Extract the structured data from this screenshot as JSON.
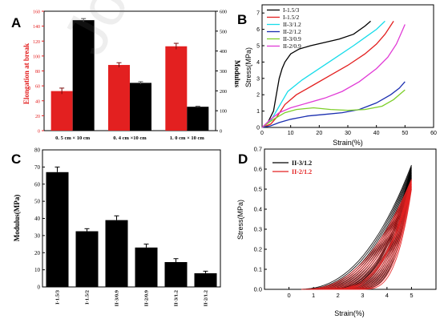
{
  "panels": {
    "A": "A",
    "B": "B",
    "C": "C",
    "D": "D"
  },
  "colors": {
    "red": "#e32020",
    "black": "#000000",
    "cyan": "#18dcea",
    "blue": "#1b2fb0",
    "green": "#7dcf2a",
    "magenta": "#e13bd6"
  },
  "watermark": "Journal Pre-proof",
  "stamp": "",
  "chart_data": [
    {
      "panel": "A",
      "type": "bar",
      "ylabel_left": "Elongation at break",
      "ylabel_right": "Modulus",
      "ylim_left": [
        0,
        160
      ],
      "yticks_left": [
        0,
        20,
        40,
        60,
        80,
        100,
        120,
        140,
        160
      ],
      "ylim_right": [
        0,
        600
      ],
      "yticks_right": [
        0,
        100,
        200,
        300,
        400,
        500,
        600
      ],
      "categories": [
        "0.5 cm × 10 cm",
        "0.4 cm × 10 cm",
        "1.0 cm × 10 cm"
      ],
      "category_labels": [
        "0. 5  cm  ×  10  cm",
        "0. 4  cm  ×10  cm",
        "1. 0  cm  ×  10  cm"
      ],
      "series": [
        {
          "name": "Elongation at break",
          "axis": "left",
          "color": "red",
          "values": [
            53,
            88,
            113
          ],
          "errors": [
            4,
            3,
            4
          ]
        },
        {
          "name": "Modulus",
          "axis": "right",
          "color": "black",
          "values": [
            555,
            240,
            120
          ],
          "errors": [
            8,
            6,
            3
          ]
        }
      ]
    },
    {
      "panel": "B",
      "type": "line",
      "xlabel": "Strain(%)",
      "ylabel": "Stress(MPa)",
      "xlim": [
        0,
        60
      ],
      "xticks": [
        0,
        10,
        20,
        30,
        40,
        50,
        60
      ],
      "ylim": [
        0,
        7.5
      ],
      "yticks": [
        0,
        1,
        2,
        3,
        4,
        5,
        6,
        7
      ],
      "legend": "top-left",
      "series": [
        {
          "name": "I-1.5/3",
          "color": "black",
          "x": [
            0,
            2,
            4,
            5,
            6,
            7,
            8,
            10,
            13,
            17,
            22,
            27,
            32,
            36,
            38
          ],
          "y": [
            0,
            0.3,
            1.0,
            2.0,
            3.0,
            3.6,
            4.0,
            4.5,
            4.8,
            5.0,
            5.2,
            5.4,
            5.7,
            6.2,
            6.5
          ]
        },
        {
          "name": "I-1.5/2",
          "color": "red",
          "x": [
            0,
            3,
            5,
            8,
            12,
            18,
            24,
            30,
            36,
            40,
            43,
            46
          ],
          "y": [
            0,
            0.2,
            0.6,
            1.4,
            2.0,
            2.6,
            3.2,
            3.8,
            4.5,
            5.1,
            5.7,
            6.5
          ]
        },
        {
          "name": "II-3/1.2",
          "color": "cyan",
          "x": [
            0,
            3,
            6,
            9,
            14,
            20,
            26,
            32,
            36,
            40,
            43
          ],
          "y": [
            0,
            0.4,
            1.3,
            2.2,
            2.9,
            3.6,
            4.3,
            5.0,
            5.5,
            6.0,
            6.5
          ]
        },
        {
          "name": "II-2/1.2",
          "color": "blue",
          "x": [
            0,
            3,
            6,
            10,
            16,
            22,
            28,
            34,
            40,
            45,
            48,
            50
          ],
          "y": [
            0,
            0.1,
            0.3,
            0.5,
            0.7,
            0.8,
            0.9,
            1.1,
            1.5,
            2.0,
            2.4,
            2.8
          ]
        },
        {
          "name": "II-3/0.9",
          "color": "green",
          "x": [
            0,
            4,
            8,
            12,
            18,
            24,
            30,
            36,
            42,
            46,
            50
          ],
          "y": [
            0,
            0.5,
            0.9,
            1.1,
            1.2,
            1.1,
            1.05,
            1.1,
            1.3,
            1.7,
            2.3
          ]
        },
        {
          "name": "II-2/0.9",
          "color": "magenta",
          "x": [
            0,
            3,
            6,
            10,
            16,
            22,
            28,
            34,
            40,
            44,
            47,
            49,
            50
          ],
          "y": [
            0,
            0.5,
            0.9,
            1.2,
            1.5,
            1.8,
            2.2,
            2.8,
            3.6,
            4.3,
            5.1,
            5.9,
            6.3
          ]
        }
      ]
    },
    {
      "panel": "C",
      "type": "bar",
      "ylabel": "Modulus(MPa)",
      "ylim": [
        0,
        80
      ],
      "yticks": [
        0,
        10,
        20,
        30,
        40,
        50,
        60,
        70,
        80
      ],
      "categories": [
        "I-1.5/3",
        "I-1.5/2",
        "II-3/0.9",
        "II-2/0.9",
        "II-3/1.2",
        "II-2/1.2"
      ],
      "values": [
        67,
        32.5,
        39,
        23,
        14.5,
        8
      ],
      "errors": [
        3,
        1.5,
        2.5,
        2,
        2,
        1.2
      ]
    },
    {
      "panel": "D",
      "type": "line",
      "xlabel": "Strain(%)",
      "ylabel": "Stress(MPa)",
      "xlim": [
        -1,
        6
      ],
      "xticks": [
        0,
        1,
        2,
        3,
        4,
        5
      ],
      "ylim": [
        0,
        0.7
      ],
      "yticks": [
        0.0,
        0.1,
        0.2,
        0.3,
        0.4,
        0.5,
        0.6,
        0.7
      ],
      "legend": "top-left",
      "series": [
        {
          "name": "II-3/1.2",
          "color": "black",
          "cycles": 10,
          "peak_strain": 5,
          "peak_stress": [
            0.62,
            0.55
          ]
        },
        {
          "name": "II-2/1.2",
          "color": "red",
          "cycles": 10,
          "peak_strain": 5,
          "peak_stress": [
            0.55,
            0.5
          ]
        }
      ]
    }
  ]
}
